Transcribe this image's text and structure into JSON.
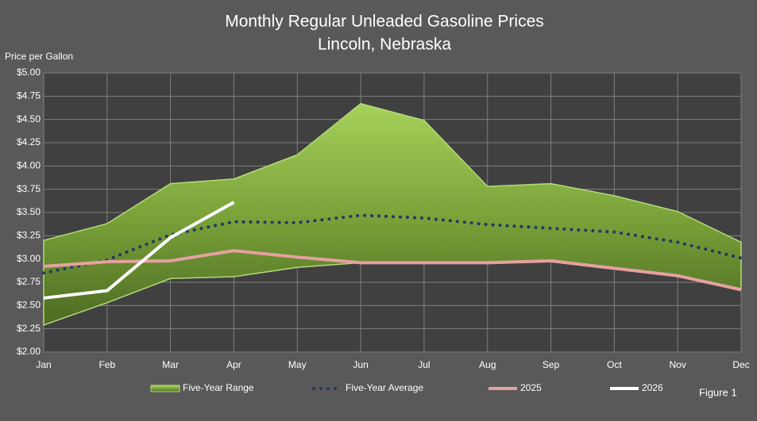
{
  "chart_data": {
    "type": "line",
    "title": [
      "Monthly Regular Unleaded Gasoline Prices",
      "Lincoln, Nebraska"
    ],
    "y_axis_label": "Price per Gallon",
    "annotation": "Figure 1",
    "categories": [
      "Jan",
      "Feb",
      "Mar",
      "Apr",
      "May",
      "Jun",
      "Jul",
      "Aug",
      "Sep",
      "Oct",
      "Nov",
      "Dec"
    ],
    "ylim": [
      2,
      5
    ],
    "yticks": [
      {
        "value": 2,
        "label": "$2.00"
      },
      {
        "value": 2.25,
        "label": "$2.25"
      },
      {
        "value": 2.5,
        "label": "$2.50"
      },
      {
        "value": 2.75,
        "label": "$2.75"
      },
      {
        "value": 3,
        "label": "$3.00"
      },
      {
        "value": 3.25,
        "label": "$3.25"
      },
      {
        "value": 3.5,
        "label": "$3.50"
      },
      {
        "value": 3.75,
        "label": "$3.75"
      },
      {
        "value": 4,
        "label": "$4.00"
      },
      {
        "value": 4.25,
        "label": "$4.25"
      },
      {
        "value": 4.5,
        "label": "$4.50"
      },
      {
        "value": 4.75,
        "label": "$4.75"
      },
      {
        "value": 5,
        "label": "$5.00"
      }
    ],
    "grid": true,
    "series": [
      {
        "name": "Five-Year Range",
        "type": "range",
        "color": "#92c047",
        "high": [
          3.2,
          3.38,
          3.81,
          3.86,
          4.12,
          4.67,
          4.49,
          3.78,
          3.81,
          3.68,
          3.51,
          3.18
        ],
        "low": [
          2.29,
          2.53,
          2.79,
          2.81,
          2.91,
          2.96,
          2.96,
          2.96,
          2.98,
          2.9,
          2.82,
          2.68
        ]
      },
      {
        "name": "Five-Year Average",
        "type": "dotted",
        "color": "#1f3864",
        "values": [
          2.85,
          2.99,
          3.26,
          3.4,
          3.39,
          3.47,
          3.44,
          3.37,
          3.33,
          3.29,
          3.18,
          3.01
        ]
      },
      {
        "name": "2025",
        "type": "line",
        "color": "#e6a0a0",
        "values": [
          2.92,
          2.97,
          2.98,
          3.09,
          3.02,
          2.96,
          2.96,
          2.96,
          2.98,
          2.9,
          2.82,
          2.67
        ]
      },
      {
        "name": "2026",
        "type": "line",
        "color": "#ffffff",
        "values": [
          2.58,
          2.66,
          3.23,
          3.61,
          null,
          null,
          null,
          null,
          null,
          null,
          null,
          null
        ]
      }
    ]
  }
}
